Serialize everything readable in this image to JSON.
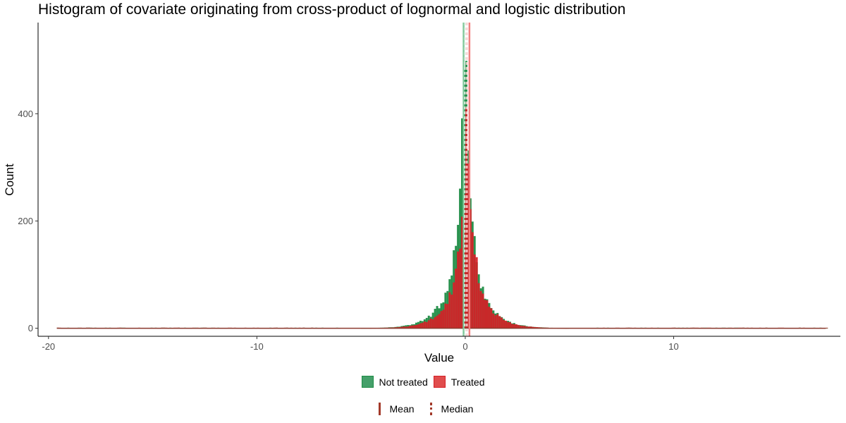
{
  "chart_data": {
    "type": "histogram",
    "title": "Histogram of covariate originating from cross-product of lognormal and logistic distribution",
    "xlabel": "Value",
    "ylabel": "Count",
    "xlim": [
      -20.5,
      18
    ],
    "ylim": [
      -15,
      570
    ],
    "x_ticks": [
      -20,
      -10,
      0,
      10
    ],
    "y_ticks": [
      0,
      200,
      400
    ],
    "bin_width": 0.1,
    "data_range": [
      -19.6,
      17.3
    ],
    "series": [
      {
        "name": "Not treated",
        "color": "#1e8c45",
        "mean": -0.08,
        "median": -0.02,
        "peak_count": 550,
        "approx_bins": [
          {
            "x": -3.0,
            "y": 6
          },
          {
            "x": -2.0,
            "y": 14
          },
          {
            "x": -1.5,
            "y": 25
          },
          {
            "x": -1.0,
            "y": 60
          },
          {
            "x": -0.5,
            "y": 150
          },
          {
            "x": -0.2,
            "y": 330
          },
          {
            "x": 0.0,
            "y": 550
          },
          {
            "x": 0.2,
            "y": 300
          },
          {
            "x": 0.5,
            "y": 110
          },
          {
            "x": 1.0,
            "y": 40
          },
          {
            "x": 1.5,
            "y": 18
          },
          {
            "x": 2.0,
            "y": 10
          },
          {
            "x": 3.0,
            "y": 4
          }
        ]
      },
      {
        "name": "Treated",
        "color": "#d61f26",
        "mean": 0.2,
        "median": 0.08,
        "peak_count": 430,
        "approx_bins": [
          {
            "x": -3.0,
            "y": 4
          },
          {
            "x": -2.0,
            "y": 9
          },
          {
            "x": -1.5,
            "y": 16
          },
          {
            "x": -1.0,
            "y": 35
          },
          {
            "x": -0.5,
            "y": 90
          },
          {
            "x": -0.2,
            "y": 200
          },
          {
            "x": 0.0,
            "y": 430
          },
          {
            "x": 0.2,
            "y": 260
          },
          {
            "x": 0.5,
            "y": 95
          },
          {
            "x": 1.0,
            "y": 40
          },
          {
            "x": 1.5,
            "y": 20
          },
          {
            "x": 2.0,
            "y": 11
          },
          {
            "x": 3.0,
            "y": 5
          }
        ]
      }
    ],
    "reference_lines": [
      {
        "label": "Mean",
        "style": "solid"
      },
      {
        "label": "Median",
        "style": "dashed"
      }
    ],
    "grid": false,
    "legend_position": "bottom"
  }
}
